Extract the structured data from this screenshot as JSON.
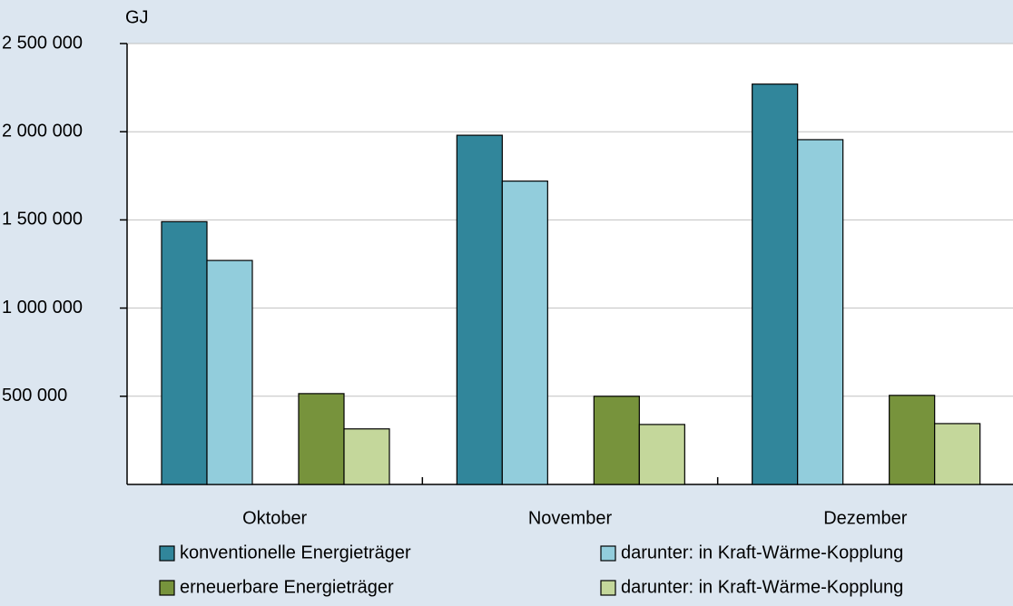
{
  "chart_data": {
    "type": "bar",
    "y_label": "GJ",
    "categories": [
      "Oktober",
      "November",
      "Dezember"
    ],
    "series": [
      {
        "name": "konventionelle Energieträger",
        "color": "#31869b",
        "values": [
          1490000,
          1980000,
          2270000
        ]
      },
      {
        "name": "darunter: in Kraft-Wärme-Kopplung",
        "color": "#92cddc",
        "values": [
          1270000,
          1720000,
          1955000
        ]
      },
      {
        "name": "erneuerbare Energieträger",
        "color": "#77933c",
        "values": [
          515000,
          500000,
          505000
        ]
      },
      {
        "name": "darunter: in Kraft-Wärme-Kopplung",
        "color": "#c4d79b",
        "values": [
          315000,
          340000,
          345000
        ]
      }
    ],
    "ylim": [
      0,
      2500000
    ],
    "yticks": [
      {
        "value": 500000,
        "label": "500 000"
      },
      {
        "value": 1000000,
        "label": "1 000 000"
      },
      {
        "value": 1500000,
        "label": "1 500 000"
      },
      {
        "value": 2000000,
        "label": "2 000 000"
      },
      {
        "value": 2500000,
        "label": "2 500 000"
      }
    ],
    "grid": true
  }
}
